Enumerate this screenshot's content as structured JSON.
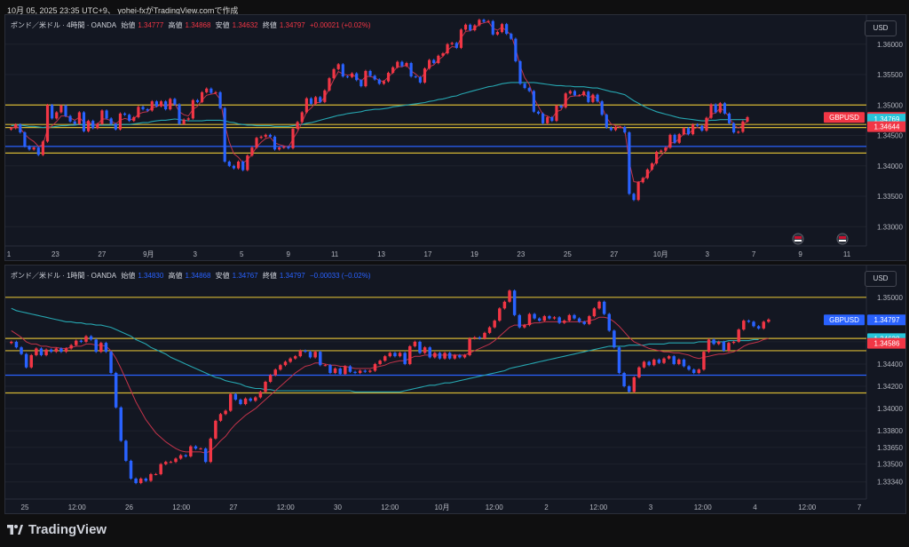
{
  "header": {
    "text": "10月 05, 2025  23:35 UTC+9、 yohei-fxがTradingView.comで作成"
  },
  "footer": {
    "brand": "TradingView"
  },
  "chart_data": [
    {
      "type": "candlestick",
      "legend": {
        "title": "ポンド／米ドル · 4時間 · OANDA",
        "open_label": "始値",
        "open": "1.34777",
        "high_label": "高値",
        "high": "1.34868",
        "low_label": "安値",
        "low": "1.34632",
        "close_label": "終値",
        "close": "1.34797",
        "change": "+0.00021 (+0.02%)"
      },
      "currency": "USD",
      "ylim": [
        1.328,
        1.3642
      ],
      "y_ticks": [
        "1.36000",
        "1.35500",
        "1.35000",
        "1.34500",
        "1.34000",
        "1.33500",
        "1.33000"
      ],
      "x_ticks": [
        "1",
        "23",
        "27",
        "9月",
        "3",
        "5",
        "9",
        "11",
        "13",
        "17",
        "19",
        "23",
        "25",
        "27",
        "10月",
        "3",
        "7",
        "9",
        "11"
      ],
      "price_labels": [
        {
          "label": "GBPUSD",
          "value": "1.34797",
          "color": "#f23645"
        },
        {
          "label": "",
          "value": "1.34769",
          "color": "#26c6da"
        },
        {
          "label": "",
          "value": "1.34644",
          "color": "#f23645"
        }
      ],
      "horizontal_levels": [
        {
          "value": 1.35,
          "color": "#d4b634"
        },
        {
          "value": 1.3468,
          "color": "#d4b634"
        },
        {
          "value": 1.3463,
          "color": "#d4b634"
        },
        {
          "value": 1.3421,
          "color": "#d4b634"
        },
        {
          "value": 1.3432,
          "color": "#2962ff"
        }
      ],
      "closes": [
        1.3462,
        1.3468,
        1.3455,
        1.3432,
        1.3427,
        1.343,
        1.3418,
        1.344,
        1.35,
        1.3478,
        1.3488,
        1.3499,
        1.3482,
        1.3473,
        1.3469,
        1.3488,
        1.3457,
        1.3474,
        1.3462,
        1.3469,
        1.3491,
        1.3478,
        1.3469,
        1.346,
        1.3486,
        1.3484,
        1.3474,
        1.348,
        1.3497,
        1.3493,
        1.3491,
        1.3506,
        1.3498,
        1.3506,
        1.3493,
        1.351,
        1.3501,
        1.3469,
        1.3476,
        1.3478,
        1.3508,
        1.3505,
        1.3521,
        1.3527,
        1.352,
        1.3521,
        1.3495,
        1.3407,
        1.34,
        1.3396,
        1.3407,
        1.3393,
        1.3417,
        1.343,
        1.3446,
        1.3448,
        1.3451,
        1.3448,
        1.3427,
        1.343,
        1.3431,
        1.3429,
        1.3461,
        1.3472,
        1.3488,
        1.3511,
        1.3502,
        1.3513,
        1.3505,
        1.3524,
        1.3544,
        1.3559,
        1.3567,
        1.3547,
        1.3546,
        1.3552,
        1.3541,
        1.3531,
        1.3556,
        1.3548,
        1.3542,
        1.3535,
        1.3539,
        1.3553,
        1.3562,
        1.3571,
        1.3564,
        1.3569,
        1.3547,
        1.3546,
        1.3537,
        1.356,
        1.3574,
        1.3569,
        1.3581,
        1.3585,
        1.36,
        1.3602,
        1.3594,
        1.3624,
        1.3632,
        1.3623,
        1.3631,
        1.364,
        1.3637,
        1.3638,
        1.3616,
        1.362,
        1.3633,
        1.3617,
        1.3609,
        1.3572,
        1.3535,
        1.3528,
        1.3523,
        1.3489,
        1.3486,
        1.347,
        1.348,
        1.3474,
        1.3499,
        1.3496,
        1.3519,
        1.3523,
        1.3516,
        1.3516,
        1.3522,
        1.3505,
        1.3517,
        1.3506,
        1.3484,
        1.3463,
        1.3459,
        1.3464,
        1.3464,
        1.3455,
        1.3354,
        1.3344,
        1.3373,
        1.338,
        1.3394,
        1.3404,
        1.3423,
        1.3425,
        1.343,
        1.3451,
        1.3438,
        1.3452,
        1.3462,
        1.3452,
        1.3468,
        1.3466,
        1.3458,
        1.3479,
        1.3501,
        1.3488,
        1.3503,
        1.3486,
        1.347,
        1.3455,
        1.3456,
        1.3473,
        1.348
      ],
      "ma_slow": [
        1.3466,
        1.3467,
        1.3467,
        1.3466,
        1.3465,
        1.3465,
        1.3464,
        1.3463,
        1.3464,
        1.3464,
        1.3465,
        1.3466,
        1.3466,
        1.3467,
        1.3467,
        1.3468,
        1.3467,
        1.3467,
        1.3467,
        1.3467,
        1.3467,
        1.3467,
        1.3467,
        1.3467,
        1.3468,
        1.3468,
        1.3468,
        1.3469,
        1.347,
        1.3471,
        1.3471,
        1.3473,
        1.3474,
        1.3475,
        1.3475,
        1.3476,
        1.3477,
        1.3476,
        1.3475,
        1.3474,
        1.3474,
        1.3474,
        1.3474,
        1.3475,
        1.3475,
        1.3475,
        1.3475,
        1.3474,
        1.3472,
        1.3471,
        1.3469,
        1.3468,
        1.3467,
        1.3467,
        1.3466,
        1.3466,
        1.3466,
        1.3466,
        1.3465,
        1.3465,
        1.3465,
        1.3465,
        1.3466,
        1.3467,
        1.3468,
        1.347,
        1.3471,
        1.3473,
        1.3475,
        1.3477,
        1.3479,
        1.3481,
        1.3483,
        1.3484,
        1.3486,
        1.3487,
        1.3488,
        1.3489,
        1.3491,
        1.3492,
        1.3493,
        1.3493,
        1.3494,
        1.3495,
        1.3497,
        1.3498,
        1.3499,
        1.35,
        1.3501,
        1.3502,
        1.3503,
        1.3504,
        1.3506,
        1.3507,
        1.3509,
        1.351,
        1.3512,
        1.3514,
        1.3515,
        1.3518,
        1.352,
        1.3522,
        1.3524,
        1.3526,
        1.3528,
        1.353,
        1.3531,
        1.3533,
        1.3535,
        1.3536,
        1.3537,
        1.3537,
        1.3537,
        1.3537,
        1.3537,
        1.3537,
        1.3536,
        1.3535,
        1.3534,
        1.3533,
        1.3532,
        1.3532,
        1.3531,
        1.3531,
        1.353,
        1.353,
        1.353,
        1.3529,
        1.3528,
        1.3528,
        1.3526,
        1.3524,
        1.3522,
        1.3521,
        1.3519,
        1.3517,
        1.3512,
        1.3507,
        1.3503,
        1.3499,
        1.3495,
        1.3492,
        1.3489,
        1.3487,
        1.3485,
        1.3483,
        1.3481,
        1.3479,
        1.3478,
        1.3477,
        1.3476,
        1.3475,
        1.3474,
        1.3474,
        1.3475,
        1.3475,
        1.3476,
        1.3476,
        1.3476,
        1.3476,
        1.3476,
        1.3476,
        1.3476
      ],
      "ma_fast": [
        1.3462,
        1.3465,
        1.3462,
        1.3452,
        1.3445,
        1.344,
        1.3432,
        1.3435,
        1.346,
        1.3466,
        1.3473,
        1.3482,
        1.3482,
        1.3479,
        1.3475,
        1.348,
        1.3471,
        1.3472,
        1.3468,
        1.3468,
        1.3477,
        1.3477,
        1.3474,
        1.3469,
        1.3475,
        1.3478,
        1.3476,
        1.3477,
        1.3485,
        1.3488,
        1.3489,
        1.3496,
        1.3497,
        1.3501,
        1.3497,
        1.3502,
        1.3502,
        1.3489,
        1.3484,
        1.3482,
        1.3493,
        1.3498,
        1.3508,
        1.3516,
        1.3518,
        1.3519,
        1.3509,
        1.3468,
        1.3439,
        1.342,
        1.3414,
        1.3405,
        1.341,
        1.3419,
        1.3431,
        1.3439,
        1.3445,
        1.3447,
        1.3438,
        1.3435,
        1.3433,
        1.3431,
        1.3444,
        1.3456,
        1.3471,
        1.3489,
        1.3495,
        1.3504,
        1.3504,
        1.3513,
        1.3527,
        1.3542,
        1.3555,
        1.3551,
        1.3549,
        1.355,
        1.3546,
        1.3539,
        1.3547,
        1.3547,
        1.3545,
        1.354,
        1.3539,
        1.3546,
        1.3554,
        1.3563,
        1.3563,
        1.3566,
        1.3556,
        1.3551,
        1.3544,
        1.3552,
        1.3563,
        1.3566,
        1.3574,
        1.358,
        1.359,
        1.3596,
        1.3595,
        1.361,
        1.3621,
        1.3622,
        1.3626,
        1.3633,
        1.3635,
        1.3637,
        1.3626,
        1.3623,
        1.3628,
        1.3622,
        1.3615,
        1.3593,
        1.3564,
        1.3545,
        1.3534,
        1.3511,
        1.3498,
        1.3484,
        1.3482,
        1.3478,
        1.3489,
        1.3492,
        1.3506,
        1.3514,
        1.3515,
        1.3515,
        1.3519,
        1.3512,
        1.3515,
        1.351,
        1.3497,
        1.3479,
        1.3469,
        1.3466,
        1.3465,
        1.346,
        1.3406,
        1.3374,
        1.3373,
        1.3376,
        1.3385,
        1.3395,
        1.3409,
        1.3417,
        1.3424,
        1.3438,
        1.3438,
        1.3445,
        1.3453,
        1.3452,
        1.346,
        1.3463,
        1.346,
        1.347,
        1.3485,
        1.3487,
        1.3495,
        1.349,
        1.348,
        1.3467,
        1.3462,
        1.3467,
        1.3474
      ]
    },
    {
      "type": "candlestick",
      "legend": {
        "title": "ポンド／米ドル · 1時間 · OANDA",
        "open_label": "始値",
        "open": "1.34830",
        "high_label": "高値",
        "high": "1.34868",
        "low_label": "安値",
        "low": "1.34767",
        "close_label": "終値",
        "close": "1.34797",
        "change": "−0.00033 (−0.02%)"
      },
      "currency": "USD",
      "ylim": [
        1.3325,
        1.3519
      ],
      "y_ticks": [
        "1.35000",
        "1.34600",
        "1.34400",
        "1.34200",
        "1.34000",
        "1.33800",
        "1.33650",
        "1.33500",
        "1.33340"
      ],
      "x_ticks": [
        "25",
        "12:00",
        "26",
        "12:00",
        "27",
        "12:00",
        "30",
        "12:00",
        "10月",
        "12:00",
        "2",
        "12:00",
        "3",
        "12:00",
        "4",
        "12:00",
        "7"
      ],
      "price_labels": [
        {
          "label": "GBPUSD",
          "value": "1.34797",
          "color": "#2962ff"
        },
        {
          "label": "",
          "value": "1.34628",
          "color": "#26c6da"
        },
        {
          "label": "",
          "value": "1.34586",
          "color": "#f23645"
        }
      ],
      "horizontal_levels": [
        {
          "value": 1.35,
          "color": "#d4b634"
        },
        {
          "value": 1.3463,
          "color": "#d4b634"
        },
        {
          "value": 1.3452,
          "color": "#d4b634"
        },
        {
          "value": 1.3414,
          "color": "#d4b634"
        },
        {
          "value": 1.343,
          "color": "#2962ff"
        }
      ],
      "closes": [
        1.346,
        1.3455,
        1.3449,
        1.3437,
        1.3448,
        1.3454,
        1.3448,
        1.3453,
        1.3451,
        1.3454,
        1.3451,
        1.3454,
        1.3457,
        1.3461,
        1.346,
        1.3465,
        1.3462,
        1.3451,
        1.3459,
        1.3451,
        1.3432,
        1.3401,
        1.3371,
        1.3353,
        1.3337,
        1.3333,
        1.3337,
        1.3335,
        1.3341,
        1.3341,
        1.335,
        1.3352,
        1.3352,
        1.3355,
        1.3358,
        1.3357,
        1.3366,
        1.3364,
        1.3364,
        1.3352,
        1.3373,
        1.3389,
        1.3395,
        1.3398,
        1.3413,
        1.3408,
        1.3404,
        1.3409,
        1.3407,
        1.341,
        1.3415,
        1.3424,
        1.343,
        1.3435,
        1.3439,
        1.3442,
        1.3445,
        1.3447,
        1.3452,
        1.3451,
        1.3446,
        1.3451,
        1.3439,
        1.3439,
        1.3432,
        1.3436,
        1.3431,
        1.3438,
        1.3433,
        1.3432,
        1.3434,
        1.3433,
        1.3434,
        1.344,
        1.3443,
        1.3447,
        1.345,
        1.3447,
        1.345,
        1.344,
        1.3456,
        1.346,
        1.345,
        1.3455,
        1.3446,
        1.345,
        1.3445,
        1.345,
        1.3445,
        1.3448,
        1.3446,
        1.3448,
        1.3463,
        1.3464,
        1.3463,
        1.3468,
        1.3473,
        1.3479,
        1.349,
        1.3496,
        1.3506,
        1.3484,
        1.3473,
        1.3475,
        1.3485,
        1.3481,
        1.3479,
        1.3483,
        1.3481,
        1.3482,
        1.3477,
        1.3479,
        1.3484,
        1.3481,
        1.3478,
        1.3476,
        1.3483,
        1.349,
        1.3496,
        1.3485,
        1.347,
        1.3455,
        1.3432,
        1.342,
        1.3415,
        1.3428,
        1.3437,
        1.3442,
        1.3439,
        1.3444,
        1.3441,
        1.3445,
        1.3447,
        1.344,
        1.3444,
        1.3438,
        1.3435,
        1.3432,
        1.3435,
        1.3451,
        1.3462,
        1.3458,
        1.346,
        1.3452,
        1.3459,
        1.346,
        1.3471,
        1.3479,
        1.3478,
        1.3474,
        1.3472,
        1.3478,
        1.348
      ],
      "ma_slow": [
        1.349,
        1.3488,
        1.3487,
        1.3486,
        1.3485,
        1.3484,
        1.3483,
        1.3482,
        1.3481,
        1.348,
        1.3479,
        1.3478,
        1.3478,
        1.3477,
        1.3477,
        1.3476,
        1.3476,
        1.3475,
        1.3475,
        1.3474,
        1.3473,
        1.3471,
        1.3469,
        1.3467,
        1.3465,
        1.3462,
        1.346,
        1.3458,
        1.3455,
        1.3453,
        1.3451,
        1.3449,
        1.3446,
        1.3444,
        1.3442,
        1.344,
        1.3438,
        1.3436,
        1.3434,
        1.3432,
        1.343,
        1.3428,
        1.3427,
        1.3425,
        1.3424,
        1.3423,
        1.3422,
        1.342,
        1.3419,
        1.3418,
        1.3418,
        1.3417,
        1.3417,
        1.3416,
        1.3416,
        1.3416,
        1.3416,
        1.3416,
        1.3416,
        1.3416,
        1.3416,
        1.3416,
        1.3416,
        1.3416,
        1.3416,
        1.3416,
        1.3416,
        1.3416,
        1.3416,
        1.3415,
        1.3415,
        1.3415,
        1.3415,
        1.3415,
        1.3415,
        1.3415,
        1.3415,
        1.3415,
        1.3415,
        1.3416,
        1.3417,
        1.3418,
        1.3419,
        1.342,
        1.3421,
        1.3421,
        1.3422,
        1.3423,
        1.3423,
        1.3424,
        1.3425,
        1.3426,
        1.3427,
        1.3428,
        1.3429,
        1.343,
        1.3431,
        1.3432,
        1.3433,
        1.3434,
        1.3436,
        1.3437,
        1.3438,
        1.3439,
        1.344,
        1.3441,
        1.3442,
        1.3443,
        1.3444,
        1.3445,
        1.3446,
        1.3447,
        1.3448,
        1.3449,
        1.345,
        1.3451,
        1.3452,
        1.3453,
        1.3454,
        1.3455,
        1.3456,
        1.3456,
        1.3456,
        1.3456,
        1.3457,
        1.3457,
        1.3457,
        1.3457,
        1.3458,
        1.3458,
        1.3458,
        1.3458,
        1.3459,
        1.3459,
        1.3459,
        1.3459,
        1.3459,
        1.3459,
        1.346,
        1.346,
        1.346,
        1.346,
        1.346,
        1.346,
        1.3461,
        1.3461,
        1.3461,
        1.3461,
        1.3461,
        1.3462,
        1.3462
      ],
      "ma_fast": [
        1.347,
        1.3467,
        1.3464,
        1.346,
        1.3458,
        1.3458,
        1.3456,
        1.3456,
        1.3455,
        1.3455,
        1.3454,
        1.3454,
        1.3455,
        1.3456,
        1.3456,
        1.3458,
        1.3458,
        1.3457,
        1.3457,
        1.3456,
        1.3452,
        1.3445,
        1.3436,
        1.3426,
        1.3416,
        1.3406,
        1.3398,
        1.339,
        1.3384,
        1.3378,
        1.3374,
        1.337,
        1.3367,
        1.3364,
        1.3362,
        1.3361,
        1.3361,
        1.3361,
        1.3361,
        1.336,
        1.3362,
        1.3366,
        1.3371,
        1.3375,
        1.3381,
        1.3386,
        1.339,
        1.3394,
        1.3397,
        1.34,
        1.3404,
        1.3408,
        1.3412,
        1.3416,
        1.342,
        1.3424,
        1.3428,
        1.3432,
        1.3435,
        1.3438,
        1.3439,
        1.3441,
        1.3441,
        1.344,
        1.3439,
        1.3439,
        1.3438,
        1.3438,
        1.3437,
        1.3436,
        1.3436,
        1.3436,
        1.3436,
        1.3437,
        1.3438,
        1.3439,
        1.3441,
        1.3442,
        1.3443,
        1.3443,
        1.3445,
        1.3447,
        1.3447,
        1.3448,
        1.3448,
        1.3448,
        1.3448,
        1.3448,
        1.3448,
        1.3448,
        1.3448,
        1.3448,
        1.345,
        1.3452,
        1.3454,
        1.3456,
        1.3458,
        1.3461,
        1.3465,
        1.3469,
        1.3473,
        1.3475,
        1.3475,
        1.3475,
        1.3476,
        1.3477,
        1.3477,
        1.3478,
        1.3478,
        1.3478,
        1.3478,
        1.3478,
        1.3478,
        1.3478,
        1.3478,
        1.3478,
        1.3479,
        1.348,
        1.3482,
        1.3482,
        1.3481,
        1.3478,
        1.3474,
        1.3469,
        1.3464,
        1.346,
        1.3458,
        1.3456,
        1.3454,
        1.3453,
        1.3452,
        1.3451,
        1.3451,
        1.345,
        1.345,
        1.3449,
        1.3448,
        1.3446,
        1.3445,
        1.3446,
        1.3447,
        1.3448,
        1.3449,
        1.3449,
        1.345,
        1.3451,
        1.3453,
        1.3456,
        1.3458,
        1.3459,
        1.346,
        1.3462,
        1.3463
      ]
    }
  ]
}
